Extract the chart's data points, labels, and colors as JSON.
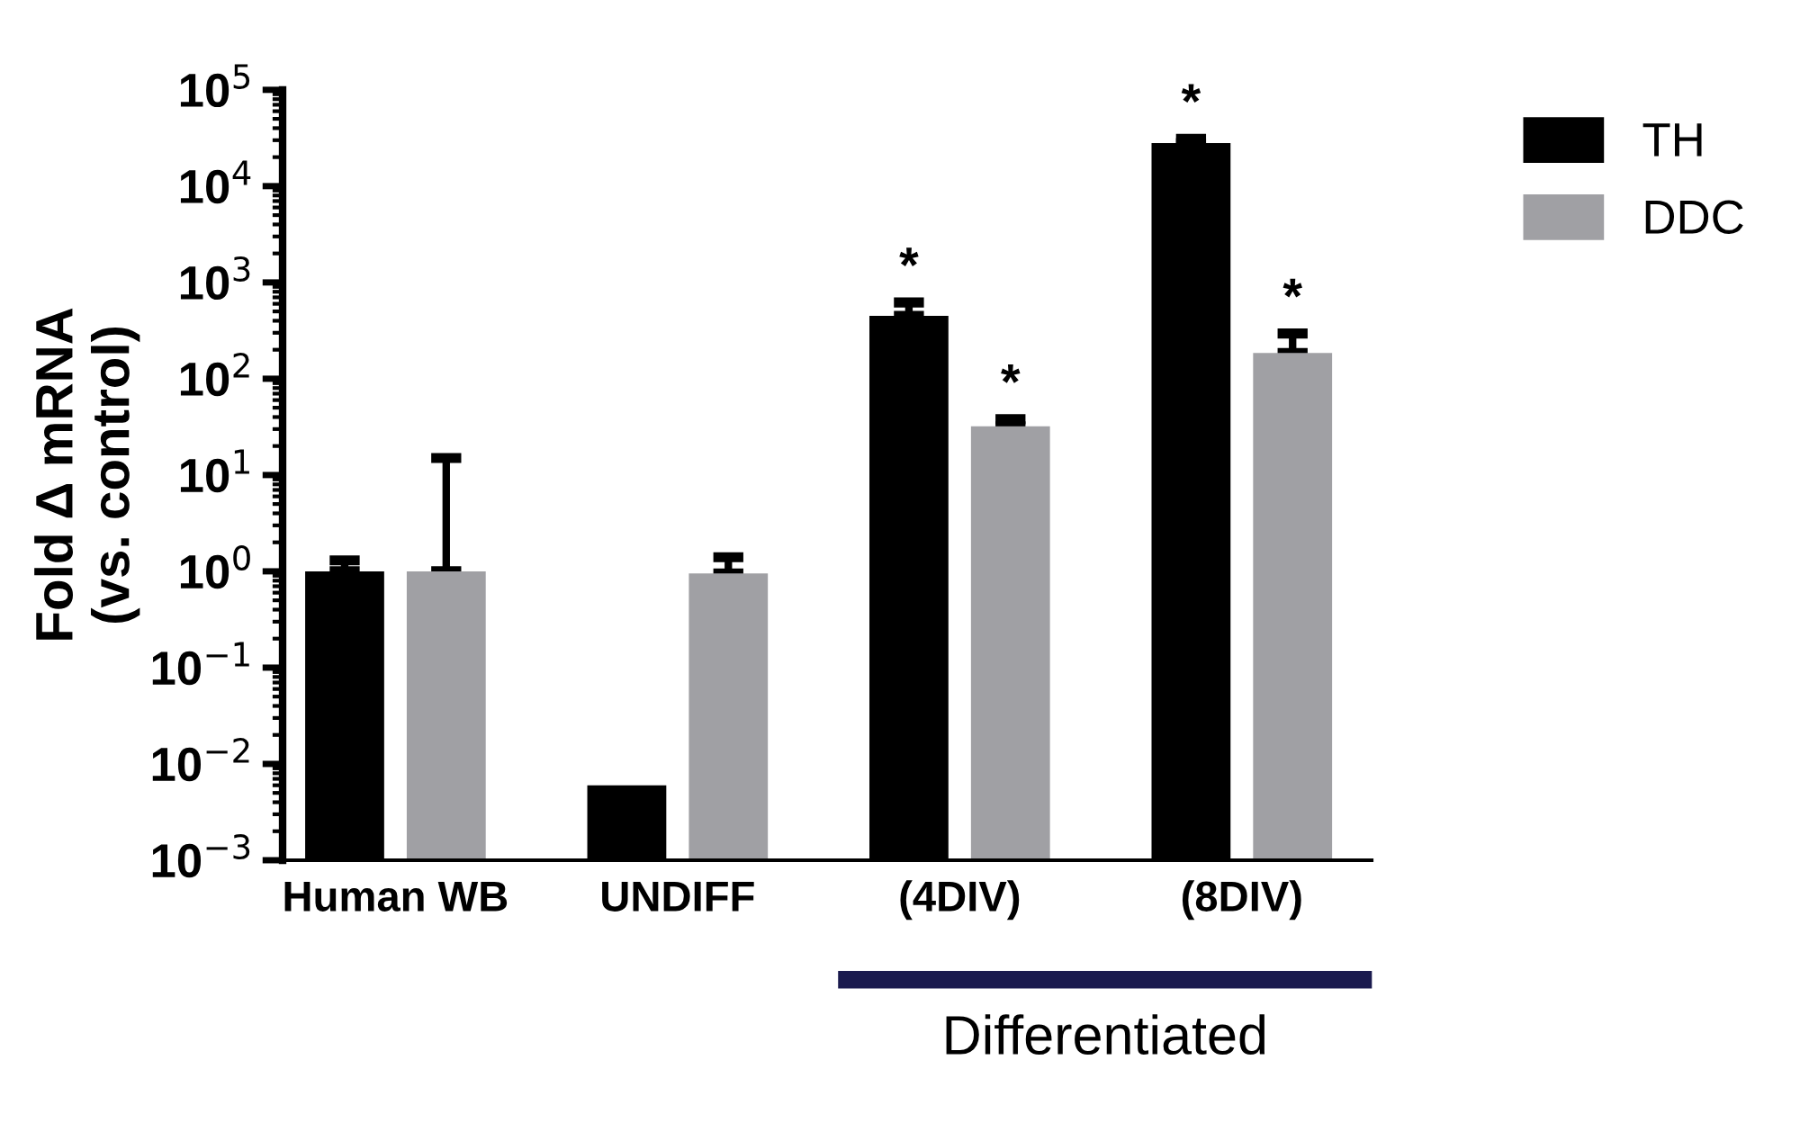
{
  "chart_data": {
    "type": "bar",
    "ylabel": "Fold Δ mRNA\n(vs. control)",
    "categories": [
      "Human WB",
      "UNDIFF",
      "(4DIV)",
      "(8DIV)"
    ],
    "series": [
      {
        "name": "TH",
        "color": "#000000",
        "values": [
          1.0,
          0.006,
          450,
          28000
        ],
        "errors": [
          [
            1.0,
            1.3
          ],
          null,
          [
            450,
            620
          ],
          [
            28000,
            31000
          ]
        ],
        "value_labels": [
          null,
          null,
          "*",
          "*"
        ]
      },
      {
        "name": "DDC",
        "color": "#a0a0a4",
        "values": [
          1.0,
          0.95,
          32,
          185
        ],
        "errors": [
          [
            1.0,
            15
          ],
          [
            0.95,
            1.4
          ],
          [
            32,
            38
          ],
          [
            185,
            295
          ]
        ],
        "value_labels": [
          null,
          null,
          "*",
          "*"
        ]
      }
    ],
    "log": "y",
    "ylim": [
      0.001,
      100000
    ],
    "yticks": [
      {
        "value": 0.001,
        "label": "10$^{−3}$"
      },
      {
        "value": 0.01,
        "label": "10$^{−2}$"
      },
      {
        "value": 0.1,
        "label": "10$^{−1}$"
      },
      {
        "value": 1,
        "label": "10$^{0}$"
      },
      {
        "value": 10,
        "label": "10$^{1}$"
      },
      {
        "value": 100,
        "label": "10$^{2}$"
      },
      {
        "value": 1000,
        "label": "10$^{3}$"
      },
      {
        "value": 10000,
        "label": "10$^{4}$"
      },
      {
        "value": 100000,
        "label": "10$^{5}$"
      }
    ],
    "grid": false,
    "legend": "top right",
    "annotations": [
      "Differentiated"
    ]
  }
}
